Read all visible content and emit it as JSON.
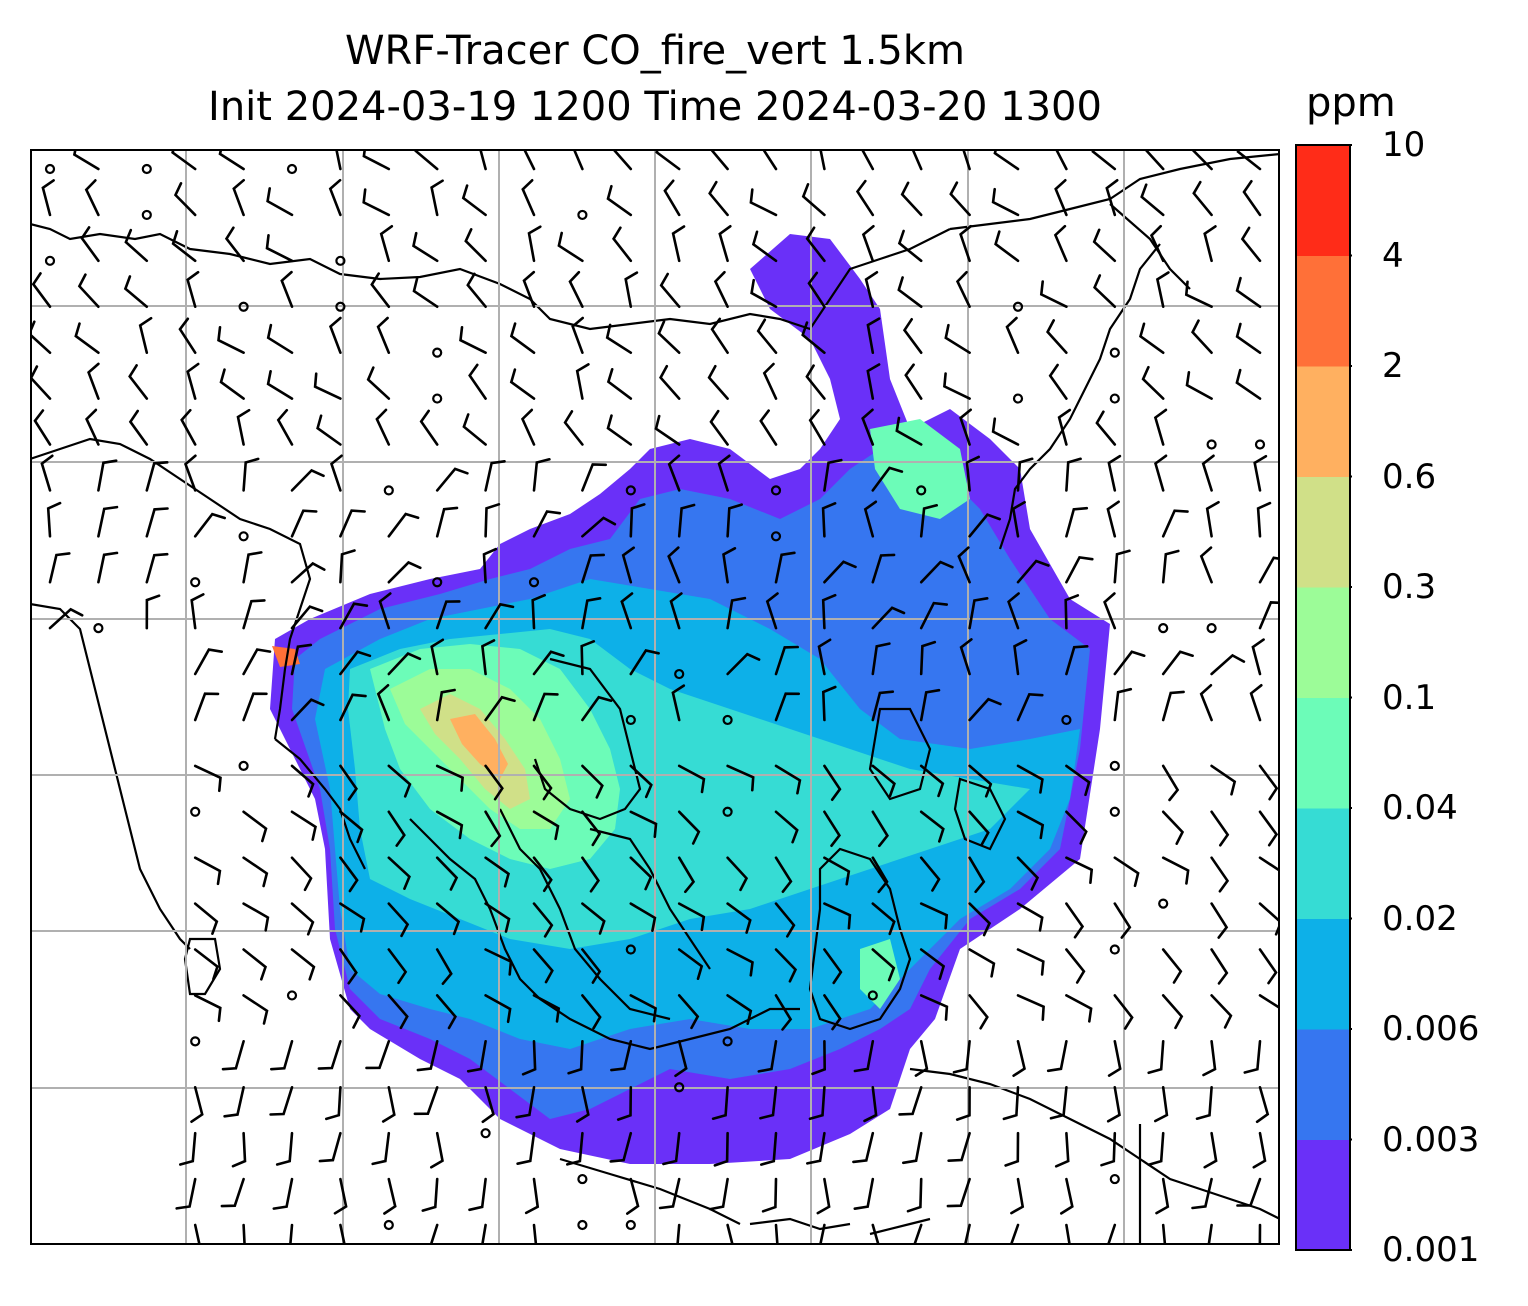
{
  "title": {
    "line1": "WRF-Tracer CO_fire_vert 1.5km",
    "line2": "Init 2024-03-19 1200 Time 2024-03-20 1300"
  },
  "colorbar": {
    "unit": "ppm",
    "levels": [
      "0.001",
      "0.003",
      "0.006",
      "0.02",
      "0.04",
      "0.1",
      "0.3",
      "0.6",
      "2",
      "4",
      "10"
    ],
    "colors": [
      "#6a30f8",
      "#3676f0",
      "#0db0e8",
      "#36dcd4",
      "#6cfcb8",
      "#9cfc98",
      "#d0e088",
      "#ffb060",
      "#ff7038",
      "#ff2c18"
    ]
  },
  "map": {
    "gridlines": true,
    "wind_barbs": true
  }
}
